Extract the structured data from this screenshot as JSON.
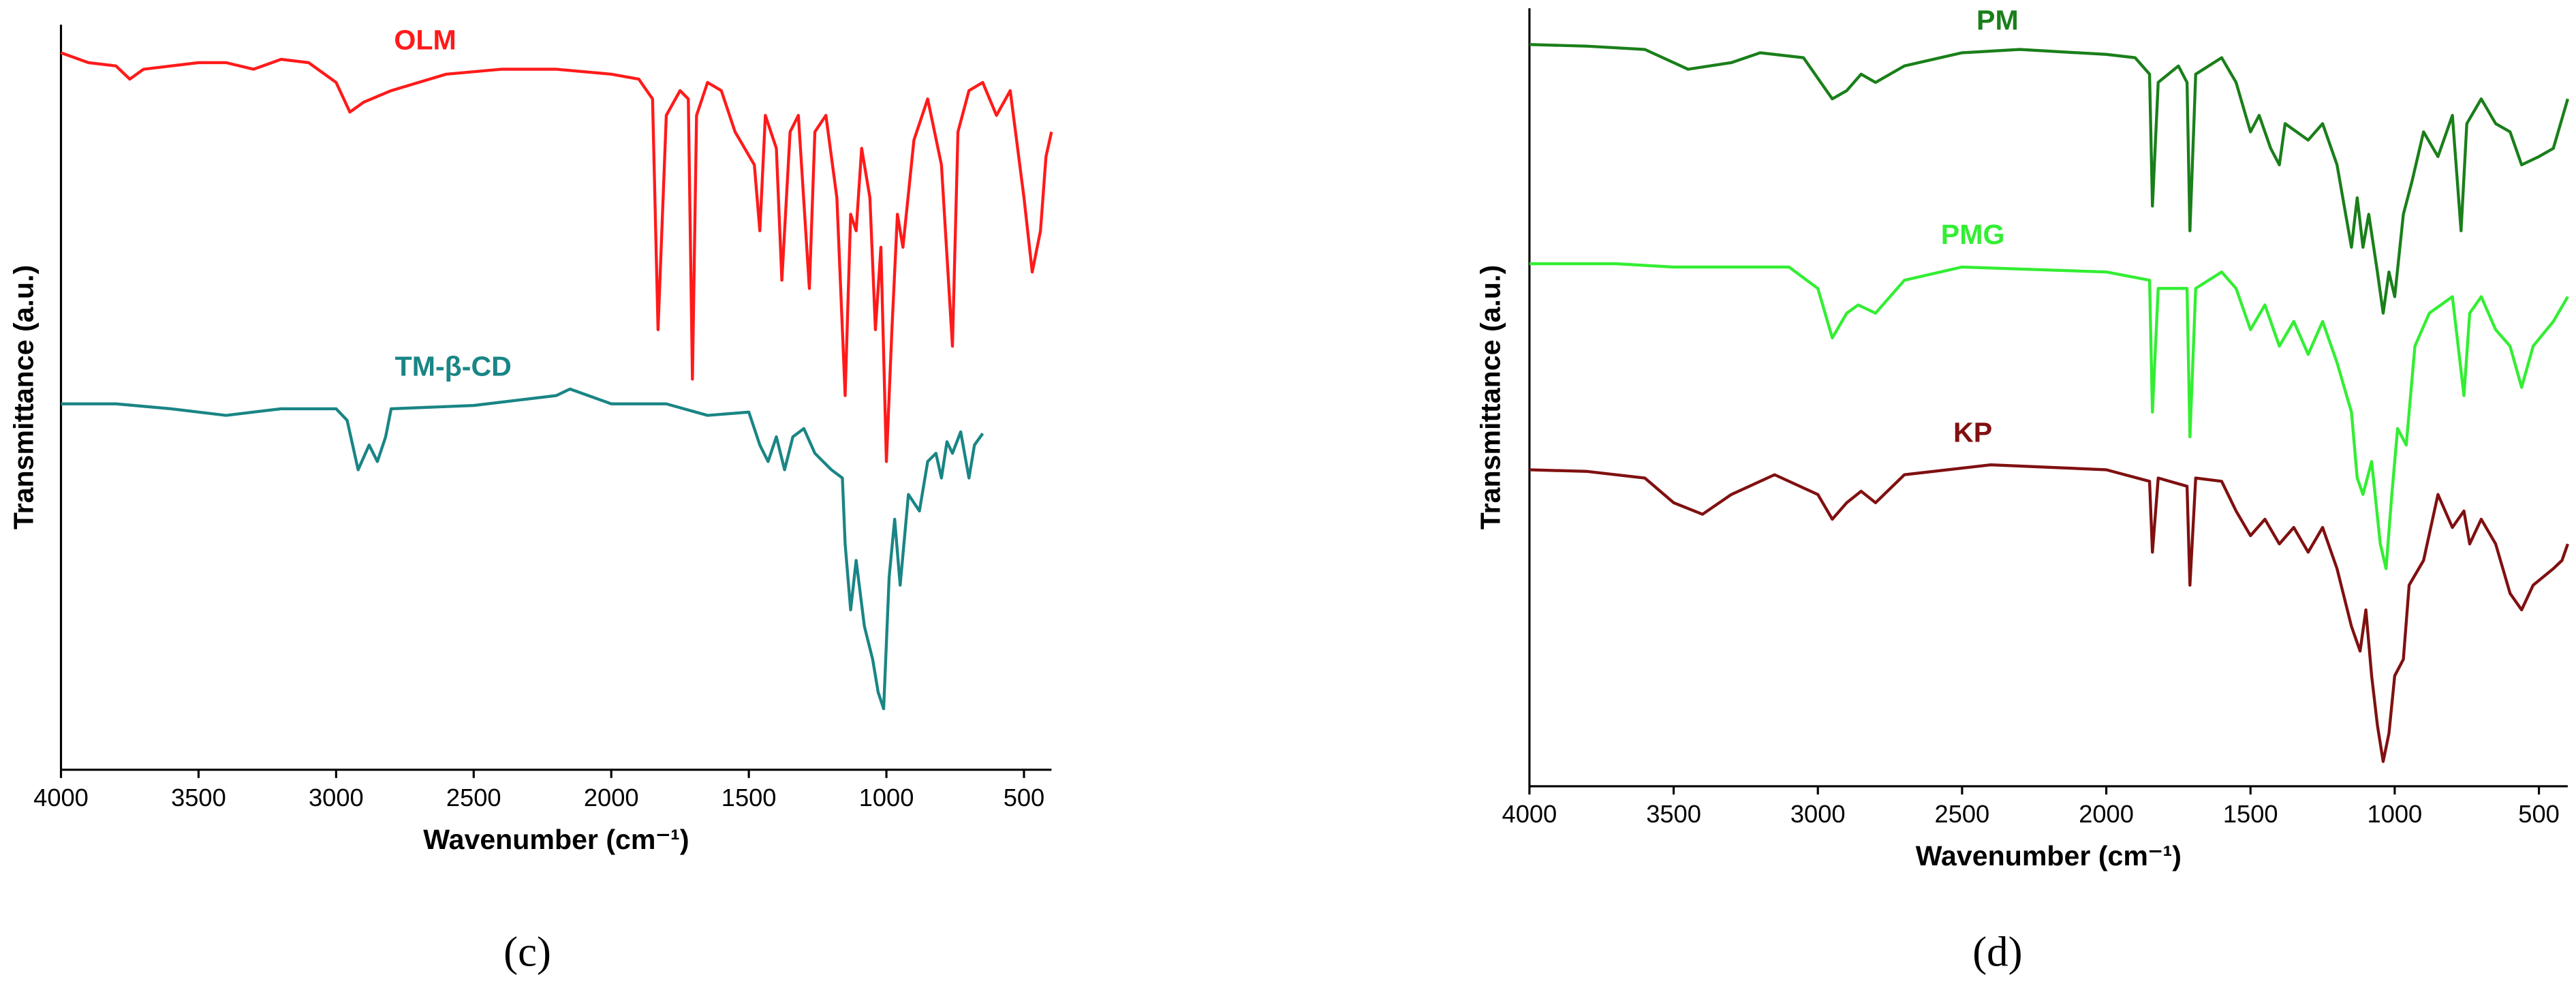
{
  "chart_data": [
    {
      "type": "line",
      "caption": "(c)",
      "xlabel": "Wavenumber (cm⁻¹)",
      "ylabel": "Transmittance (a.u.)",
      "xlim": [
        4000,
        400
      ],
      "xticks": [
        4000,
        3500,
        3000,
        2500,
        2000,
        1500,
        1000,
        500
      ],
      "ylim": [
        0,
        452
      ],
      "series": [
        {
          "name": "OLM",
          "color": "#ff1a1a",
          "x": [
            4000,
            3900,
            3800,
            3750,
            3700,
            3600,
            3500,
            3400,
            3300,
            3200,
            3100,
            3000,
            2950,
            2900,
            2800,
            2600,
            2400,
            2200,
            2000,
            1900,
            1850,
            1830,
            1800,
            1750,
            1720,
            1705,
            1690,
            1650,
            1600,
            1550,
            1480,
            1460,
            1440,
            1400,
            1380,
            1350,
            1320,
            1280,
            1260,
            1220,
            1180,
            1150,
            1130,
            1110,
            1090,
            1060,
            1040,
            1020,
            1000,
            980,
            960,
            940,
            900,
            850,
            800,
            760,
            740,
            700,
            650,
            600,
            550,
            500,
            470,
            440,
            420,
            400
          ],
          "values": [
            435,
            429,
            427,
            419,
            425,
            427,
            429,
            429,
            425,
            431,
            429,
            417,
            399,
            405,
            412,
            422,
            425,
            425,
            422,
            419,
            407,
            267,
            397,
            412,
            407,
            237,
            397,
            417,
            412,
            387,
            367,
            327,
            397,
            377,
            297,
            387,
            397,
            292,
            387,
            397,
            347,
            227,
            337,
            327,
            377,
            347,
            267,
            317,
            187,
            267,
            337,
            317,
            382,
            407,
            367,
            257,
            387,
            412,
            417,
            397,
            412,
            347,
            302,
            327,
            372,
            387
          ]
        },
        {
          "name": "TM-β-CD",
          "color": "#1a8585",
          "x": [
            4000,
            3800,
            3600,
            3400,
            3200,
            3000,
            2960,
            2940,
            2920,
            2880,
            2850,
            2820,
            2800,
            2500,
            2200,
            2150,
            2000,
            1800,
            1650,
            1500,
            1460,
            1430,
            1400,
            1370,
            1340,
            1300,
            1260,
            1200,
            1160,
            1150,
            1130,
            1110,
            1080,
            1050,
            1030,
            1010,
            990,
            970,
            950,
            920,
            880,
            850,
            820,
            800,
            780,
            760,
            730,
            700,
            680,
            650
          ],
          "values": [
            222,
            222,
            219,
            215,
            219,
            219,
            212,
            197,
            182,
            197,
            187,
            202,
            219,
            221,
            227,
            231,
            222,
            222,
            215,
            217,
            197,
            187,
            202,
            182,
            202,
            207,
            192,
            182,
            177,
            137,
            97,
            127,
            87,
            67,
            47,
            37,
            117,
            152,
            112,
            167,
            157,
            187,
            192,
            177,
            199,
            192,
            205,
            177,
            197,
            204
          ]
        }
      ]
    },
    {
      "type": "line",
      "caption": "(d)",
      "xlabel": "Wavenumber (cm⁻¹)",
      "ylabel": "Transmittance (a.u.)",
      "xlim": [
        4000,
        400
      ],
      "xticks": [
        4000,
        3500,
        3000,
        2500,
        2000,
        1500,
        1000,
        500
      ],
      "ylim": [
        0,
        472
      ],
      "series": [
        {
          "name": "PM",
          "color": "#1a7f1a",
          "x": [
            4000,
            3800,
            3600,
            3450,
            3300,
            3200,
            3050,
            2950,
            2900,
            2850,
            2800,
            2700,
            2500,
            2300,
            2000,
            1900,
            1850,
            1840,
            1820,
            1750,
            1720,
            1710,
            1690,
            1600,
            1550,
            1500,
            1470,
            1430,
            1400,
            1380,
            1300,
            1250,
            1200,
            1150,
            1130,
            1110,
            1090,
            1060,
            1040,
            1020,
            1000,
            970,
            940,
            900,
            850,
            800,
            770,
            750,
            700,
            650,
            600,
            560,
            500,
            450,
            400
          ],
          "values": [
            450,
            449,
            447,
            435,
            439,
            445,
            442,
            417,
            422,
            432,
            427,
            437,
            445,
            447,
            444,
            442,
            432,
            352,
            427,
            437,
            427,
            337,
            432,
            442,
            427,
            397,
            407,
            387,
            377,
            402,
            392,
            402,
            377,
            327,
            357,
            327,
            347,
            312,
            287,
            312,
            297,
            347,
            367,
            397,
            382,
            407,
            337,
            402,
            417,
            402,
            397,
            377,
            382,
            387,
            417
          ]
        },
        {
          "name": "PMG",
          "color": "#33ee33",
          "x": [
            4000,
            3700,
            3500,
            3300,
            3100,
            3000,
            2950,
            2900,
            2860,
            2800,
            2700,
            2500,
            2000,
            1850,
            1840,
            1820,
            1720,
            1710,
            1690,
            1600,
            1550,
            1500,
            1450,
            1400,
            1350,
            1300,
            1250,
            1200,
            1150,
            1130,
            1110,
            1080,
            1050,
            1030,
            1010,
            990,
            960,
            930,
            880,
            800,
            760,
            740,
            700,
            650,
            600,
            560,
            520,
            450,
            400
          ],
          "values": [
            317,
            317,
            315,
            315,
            315,
            302,
            272,
            287,
            292,
            287,
            307,
            315,
            312,
            307,
            227,
            302,
            302,
            212,
            302,
            312,
            302,
            277,
            292,
            267,
            282,
            262,
            282,
            257,
            227,
            187,
            177,
            197,
            147,
            132,
            177,
            217,
            207,
            267,
            287,
            297,
            237,
            287,
            297,
            277,
            267,
            242,
            267,
            282,
            297
          ]
        },
        {
          "name": "KP",
          "color": "#801010",
          "x": [
            4000,
            3800,
            3600,
            3500,
            3400,
            3300,
            3150,
            3000,
            2950,
            2900,
            2850,
            2800,
            2700,
            2400,
            2000,
            1850,
            1840,
            1820,
            1720,
            1710,
            1690,
            1600,
            1550,
            1500,
            1450,
            1400,
            1350,
            1300,
            1250,
            1200,
            1150,
            1120,
            1100,
            1080,
            1060,
            1040,
            1020,
            1000,
            970,
            950,
            900,
            850,
            800,
            760,
            740,
            700,
            650,
            600,
            560,
            520,
            450,
            420,
            400
          ],
          "values": [
            192,
            191,
            187,
            172,
            165,
            177,
            189,
            177,
            162,
            172,
            179,
            172,
            189,
            195,
            192,
            185,
            142,
            187,
            182,
            122,
            187,
            185,
            167,
            152,
            162,
            147,
            157,
            142,
            157,
            132,
            97,
            82,
            107,
            67,
            37,
            15,
            32,
            67,
            77,
            122,
            137,
            177,
            157,
            167,
            147,
            162,
            147,
            117,
            107,
            122,
            132,
            137,
            147
          ]
        }
      ]
    }
  ]
}
